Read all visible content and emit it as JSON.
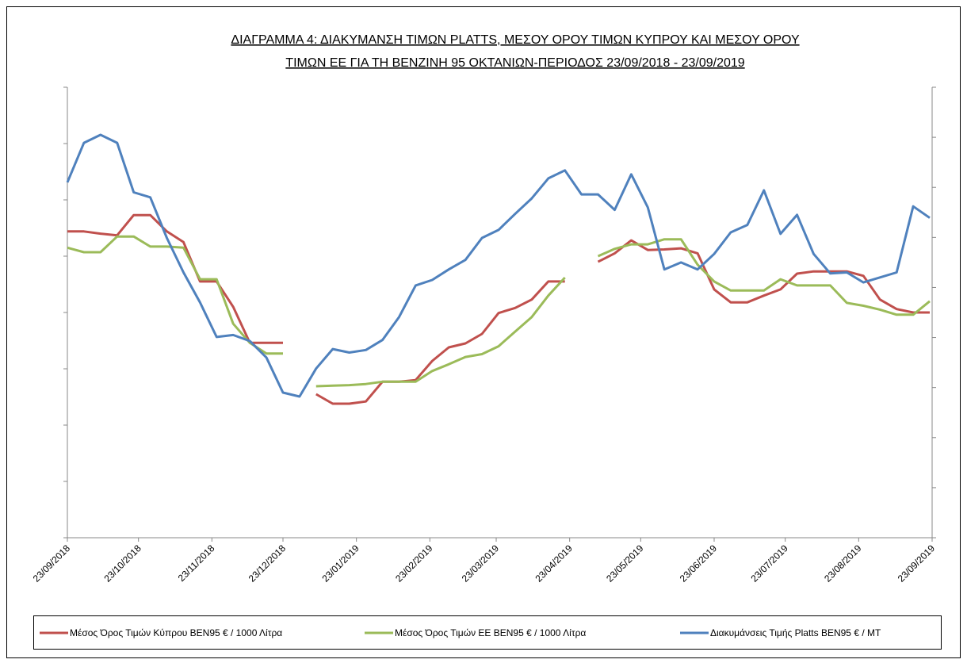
{
  "chart_data": {
    "type": "line",
    "title": [
      "ΔΙΑΓΡΑΜΜΑ 4: ΔΙΑΚΥΜΑΝΣΗ ΤΙΜΩΝ PLATTS, ΜΕΣΟΥ ΟΡΟΥ ΤΙΜΩΝ ΚΥΠΡΟΥ ΚΑΙ ΜΕΣΟΥ ΟΡΟΥ",
      "ΤΙΜΩΝ ΕΕ ΓΙΑ ΤΗ ΒΕΝΖΙΝΗ 95 ΟΚΤΑΝΙΩΝ-ΠΕΡΙΟΔΟΣ 23/09/2018 - 23/09/2019"
    ],
    "x": [
      "23/09/2018",
      "30/09/2018",
      "07/10/2018",
      "14/10/2018",
      "21/10/2018",
      "28/10/2018",
      "04/11/2018",
      "11/11/2018",
      "18/11/2018",
      "25/11/2018",
      "02/12/2018",
      "09/12/2018",
      "16/12/2018",
      "23/12/2018",
      "30/12/2018",
      "06/01/2019",
      "13/01/2019",
      "20/01/2019",
      "27/01/2019",
      "03/02/2019",
      "10/02/2019",
      "17/02/2019",
      "24/02/2019",
      "03/03/2019",
      "10/03/2019",
      "17/03/2019",
      "24/03/2019",
      "31/03/2019",
      "07/04/2019",
      "14/04/2019",
      "21/04/2019",
      "28/04/2019",
      "05/05/2019",
      "12/05/2019",
      "19/05/2019",
      "26/05/2019",
      "02/06/2019",
      "09/06/2019",
      "16/06/2019",
      "23/06/2019",
      "30/06/2019",
      "07/07/2019",
      "14/07/2019",
      "21/07/2019",
      "28/07/2019",
      "04/08/2019",
      "11/08/2019",
      "18/08/2019",
      "25/08/2019",
      "01/09/2019",
      "08/09/2019",
      "15/09/2019",
      "22/09/2019"
    ],
    "series": [
      {
        "name": "Μέσος Όρος Τιμών Κύπρου ΒΕΝ95 € / 1000  Λίτρα",
        "color": "#c0504d",
        "values": [
          5.44,
          5.44,
          5.4,
          5.37,
          5.73,
          5.73,
          5.44,
          5.25,
          4.55,
          4.55,
          4.1,
          3.46,
          3.46,
          3.46,
          null,
          2.55,
          2.38,
          2.38,
          2.42,
          2.77,
          2.77,
          2.8,
          3.14,
          3.38,
          3.45,
          3.62,
          3.99,
          4.08,
          4.23,
          4.55,
          4.55,
          null,
          4.9,
          5.05,
          5.28,
          5.11,
          5.12,
          5.14,
          5.05,
          4.41,
          4.18,
          4.18,
          4.3,
          4.41,
          4.69,
          4.73,
          4.73,
          4.73,
          4.65,
          4.23,
          4.06,
          4.0,
          4.0
        ]
      },
      {
        "name": "Μέσος Όρος Τιμών ΕΕ ΒΕΝ95 € / 1000  Λίτρα",
        "color": "#9bbb59",
        "values": [
          5.15,
          5.07,
          5.07,
          5.35,
          5.35,
          5.17,
          5.17,
          5.15,
          4.59,
          4.59,
          3.8,
          3.46,
          3.27,
          3.27,
          null,
          2.69,
          2.7,
          2.71,
          2.73,
          2.77,
          2.77,
          2.77,
          2.96,
          3.08,
          3.21,
          3.26,
          3.4,
          3.66,
          3.92,
          4.3,
          4.62,
          null,
          5.0,
          5.13,
          5.21,
          5.21,
          5.3,
          5.3,
          4.85,
          4.55,
          4.39,
          4.39,
          4.39,
          4.59,
          4.48,
          4.48,
          4.48,
          4.17,
          4.12,
          4.05,
          3.96,
          3.96,
          4.2
        ]
      },
      {
        "name": "Διακυμάνσεις Τιμής Platts ΒΕΝ95 € / MT",
        "color": "#4f81bd",
        "axis": "y2",
        "values": [
          7.1,
          7.89,
          8.05,
          7.89,
          6.9,
          6.8,
          5.99,
          5.3,
          4.7,
          4.01,
          4.05,
          3.93,
          3.6,
          2.9,
          2.82,
          3.38,
          3.77,
          3.7,
          3.75,
          3.95,
          4.41,
          5.04,
          5.15,
          5.36,
          5.55,
          5.99,
          6.15,
          6.47,
          6.78,
          7.18,
          7.34,
          6.86,
          6.86,
          6.55,
          7.26,
          6.6,
          5.36,
          5.5,
          5.36,
          5.67,
          6.1,
          6.25,
          6.94,
          6.07,
          6.45,
          5.67,
          5.28,
          5.3,
          5.1,
          5.2,
          5.3,
          6.62,
          6.39
        ]
      }
    ],
    "xlim": [
      "23/09/2018",
      "23/09/2019"
    ],
    "xticks": [
      "23/09/2018",
      "23/10/2018",
      "23/11/2018",
      "23/12/2018",
      "23/01/2019",
      "23/02/2019",
      "23/03/2019",
      "23/04/2019",
      "23/05/2019",
      "23/06/2019",
      "23/07/2019",
      "23/08/2019",
      "23/09/2019"
    ],
    "ylim": [
      0,
      8
    ],
    "yticks": [
      0,
      1,
      2,
      3,
      4,
      5,
      6,
      7,
      8
    ],
    "y2lim": [
      0,
      9
    ],
    "y2ticks": [
      0,
      1,
      2,
      3,
      4,
      5,
      6,
      7,
      8,
      9
    ],
    "grid": false
  }
}
